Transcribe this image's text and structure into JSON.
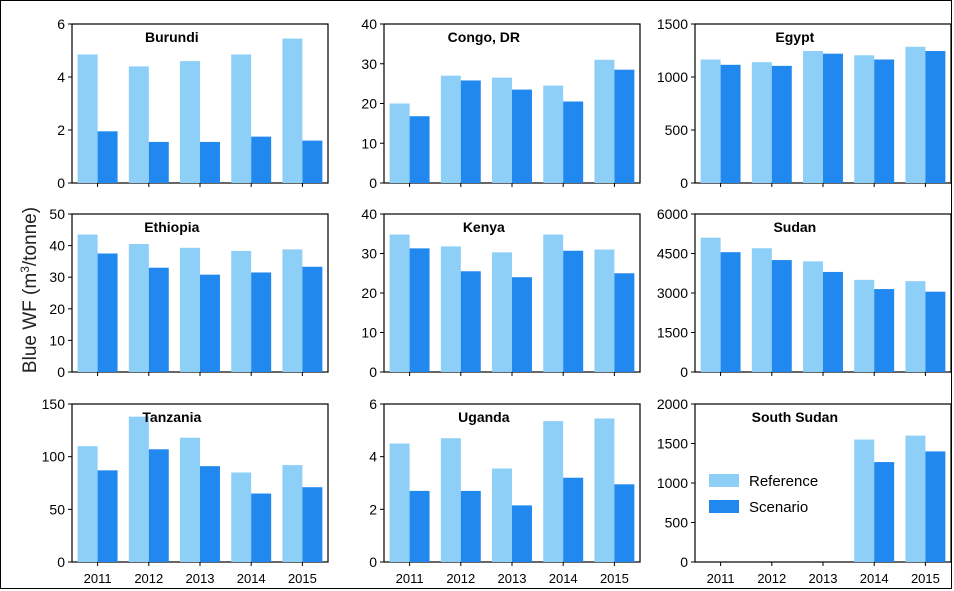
{
  "figure": {
    "ylabel_prefix": "Blue WF (m",
    "ylabel_sup": "3",
    "ylabel_suffix": "/tonne)"
  },
  "colors": {
    "reference": "#8ecff7",
    "scenario": "#2188f0",
    "axis": "#000000"
  },
  "legend": {
    "reference": "Reference",
    "scenario": "Scenario"
  },
  "chart_data": [
    {
      "type": "bar",
      "title": "Burundi",
      "categories": [
        "2011",
        "2012",
        "2013",
        "2014",
        "2015"
      ],
      "ylim": [
        0,
        6
      ],
      "yticks": [
        "0",
        "2",
        "4",
        "6"
      ],
      "series": [
        {
          "name": "Reference",
          "values": [
            4.85,
            4.4,
            4.6,
            4.85,
            5.45
          ]
        },
        {
          "name": "Scenario",
          "values": [
            1.95,
            1.55,
            1.55,
            1.75,
            1.6
          ]
        }
      ]
    },
    {
      "type": "bar",
      "title": "Congo, DR",
      "categories": [
        "2011",
        "2012",
        "2013",
        "2014",
        "2015"
      ],
      "ylim": [
        0,
        40
      ],
      "yticks": [
        "0",
        "10",
        "20",
        "30",
        "40"
      ],
      "series": [
        {
          "name": "Reference",
          "values": [
            20,
            27,
            26.5,
            24.5,
            31
          ]
        },
        {
          "name": "Scenario",
          "values": [
            16.8,
            25.8,
            23.5,
            20.5,
            28.5
          ]
        }
      ]
    },
    {
      "type": "bar",
      "title": "Egypt",
      "categories": [
        "2011",
        "2012",
        "2013",
        "2014",
        "2015"
      ],
      "ylim": [
        0,
        1500
      ],
      "yticks": [
        "0",
        "500",
        "1000",
        "1500"
      ],
      "series": [
        {
          "name": "Reference",
          "values": [
            1165,
            1140,
            1245,
            1205,
            1285
          ]
        },
        {
          "name": "Scenario",
          "values": [
            1115,
            1105,
            1220,
            1165,
            1245
          ]
        }
      ]
    },
    {
      "type": "bar",
      "title": "Ethiopia",
      "categories": [
        "2011",
        "2012",
        "2013",
        "2014",
        "2015"
      ],
      "ylim": [
        0,
        50
      ],
      "yticks": [
        "0",
        "10",
        "20",
        "30",
        "40",
        "50"
      ],
      "series": [
        {
          "name": "Reference",
          "values": [
            43.5,
            40.5,
            39.3,
            38.3,
            38.8
          ]
        },
        {
          "name": "Scenario",
          "values": [
            37.5,
            33,
            30.8,
            31.5,
            33.3
          ]
        }
      ]
    },
    {
      "type": "bar",
      "title": "Kenya",
      "categories": [
        "2011",
        "2012",
        "2013",
        "2014",
        "2015"
      ],
      "ylim": [
        0,
        40
      ],
      "yticks": [
        "0",
        "10",
        "20",
        "30",
        "40"
      ],
      "series": [
        {
          "name": "Reference",
          "values": [
            34.8,
            31.8,
            30.3,
            34.8,
            31
          ]
        },
        {
          "name": "Scenario",
          "values": [
            31.3,
            25.5,
            24,
            30.7,
            25
          ]
        }
      ]
    },
    {
      "type": "bar",
      "title": "Sudan",
      "categories": [
        "2011",
        "2012",
        "2013",
        "2014",
        "2015"
      ],
      "ylim": [
        0,
        6000
      ],
      "yticks": [
        "0",
        "1500",
        "3000",
        "4500",
        "6000"
      ],
      "series": [
        {
          "name": "Reference",
          "values": [
            5100,
            4700,
            4200,
            3500,
            3450
          ]
        },
        {
          "name": "Scenario",
          "values": [
            4550,
            4250,
            3800,
            3150,
            3050
          ]
        }
      ]
    },
    {
      "type": "bar",
      "title": "Tanzania",
      "categories": [
        "2011",
        "2012",
        "2013",
        "2014",
        "2015"
      ],
      "ylim": [
        0,
        150
      ],
      "yticks": [
        "0",
        "50",
        "100",
        "150"
      ],
      "series": [
        {
          "name": "Reference",
          "values": [
            110,
            138,
            118,
            85,
            92
          ]
        },
        {
          "name": "Scenario",
          "values": [
            87,
            107,
            91,
            65,
            71
          ]
        }
      ]
    },
    {
      "type": "bar",
      "title": "Uganda",
      "categories": [
        "2011",
        "2012",
        "2013",
        "2014",
        "2015"
      ],
      "ylim": [
        0,
        6
      ],
      "yticks": [
        "0",
        "2",
        "4",
        "6"
      ],
      "series": [
        {
          "name": "Reference",
          "values": [
            4.5,
            4.7,
            3.55,
            5.35,
            5.45
          ]
        },
        {
          "name": "Scenario",
          "values": [
            2.7,
            2.7,
            2.15,
            3.2,
            2.95
          ]
        }
      ]
    },
    {
      "type": "bar",
      "title": "South Sudan",
      "categories": [
        "2011",
        "2012",
        "2013",
        "2014",
        "2015"
      ],
      "ylim": [
        0,
        2000
      ],
      "yticks": [
        "0",
        "500",
        "1000",
        "1500",
        "2000"
      ],
      "legend": "center-left",
      "series": [
        {
          "name": "Reference",
          "values": [
            0,
            0,
            0,
            1550,
            1600
          ]
        },
        {
          "name": "Scenario",
          "values": [
            0,
            0,
            0,
            1265,
            1400
          ]
        }
      ]
    }
  ]
}
